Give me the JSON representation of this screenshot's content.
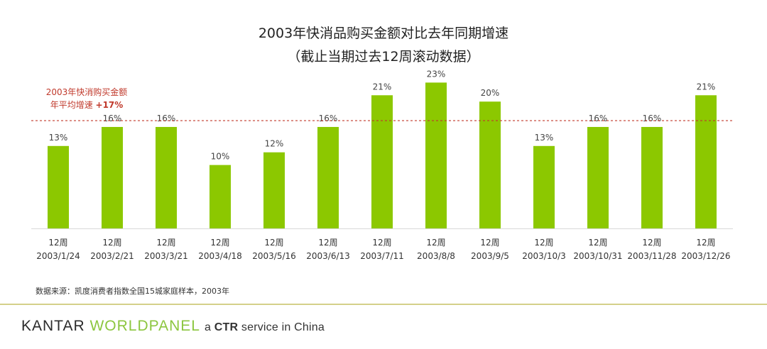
{
  "chart_data": {
    "type": "bar",
    "title": "2003年快消品购买金额对比去年同期增速",
    "subtitle": "（截止当期过去12周滚动数据）",
    "categories_line1": [
      "12周",
      "12周",
      "12周",
      "12周",
      "12周",
      "12周",
      "12周",
      "12周",
      "12周",
      "12周",
      "12周",
      "12周",
      "12周"
    ],
    "categories": [
      "2003/1/24",
      "2003/2/21",
      "2003/3/21",
      "2003/4/18",
      "2003/5/16",
      "2003/6/13",
      "2003/7/11",
      "2003/8/8",
      "2003/9/5",
      "2003/10/3",
      "2003/10/31",
      "2003/11/28",
      "2003/12/26"
    ],
    "values": [
      13,
      16,
      16,
      10,
      12,
      16,
      21,
      23,
      20,
      13,
      16,
      16,
      21
    ],
    "value_labels": [
      "13%",
      "16%",
      "16%",
      "10%",
      "12%",
      "16%",
      "21%",
      "23%",
      "20%",
      "13%",
      "16%",
      "16%",
      "21%"
    ],
    "ylim": [
      0,
      24.5
    ],
    "bar_color": "#8cc800",
    "reference_line": {
      "value": 17,
      "label_line1": "2003年快消购买金额",
      "label_line2": "年平均增速 ",
      "label_value": "+17%",
      "color": "#c0392b"
    },
    "source": "数据来源：凯度消费者指数全国15城家庭样本，2003年"
  },
  "footer": {
    "brand_kantar": "KANTAR ",
    "brand_worldpanel": "WORLDPANEL",
    "service_prefix": "a ",
    "service_ctr": "CTR",
    "service_suffix": " service in China"
  }
}
